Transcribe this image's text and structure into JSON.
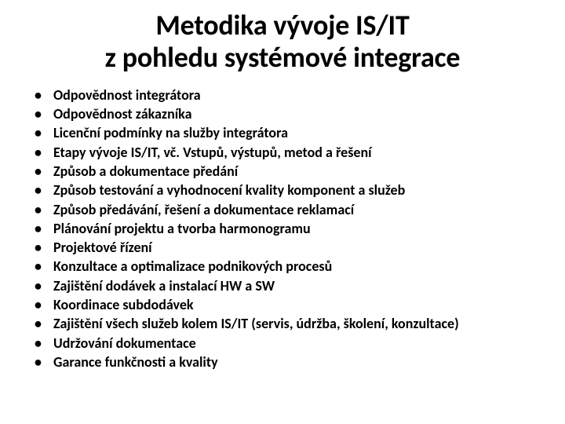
{
  "slide": {
    "title_line1": "Metodika vývoje IS/IT",
    "title_line2": "z pohledu systémové integrace",
    "bullets": [
      "Odpovědnost integrátora",
      "Odpovědnost zákazníka",
      "Licenční podmínky na služby integrátora",
      "Etapy vývoje IS/IT, vč. Vstupů, výstupů, metod a řešení",
      "Způsob a dokumentace předání",
      "Způsob testování a vyhodnocení kvality komponent a služeb",
      "Způsob předávání, řešení a dokumentace reklamací",
      "Plánování projektu a tvorba harmonogramu",
      "Projektové řízení",
      "Konzultace a optimalizace podnikových procesů",
      "Zajištění dodávek a instalací HW a SW",
      "Koordinace subdodávek",
      "Zajištění všech služeb kolem IS/IT (servis, údržba, školení, konzultace)",
      "Udržování dokumentace",
      "Garance funkčnosti a kvality"
    ]
  },
  "style": {
    "background_color": "#ffffff",
    "text_color": "#000000",
    "title_fontsize": 36,
    "title_fontweight": 700,
    "bullet_fontsize": 18,
    "bullet_fontweight": 600,
    "bullet_lineheight": 1.35,
    "font_family": "Calibri"
  }
}
